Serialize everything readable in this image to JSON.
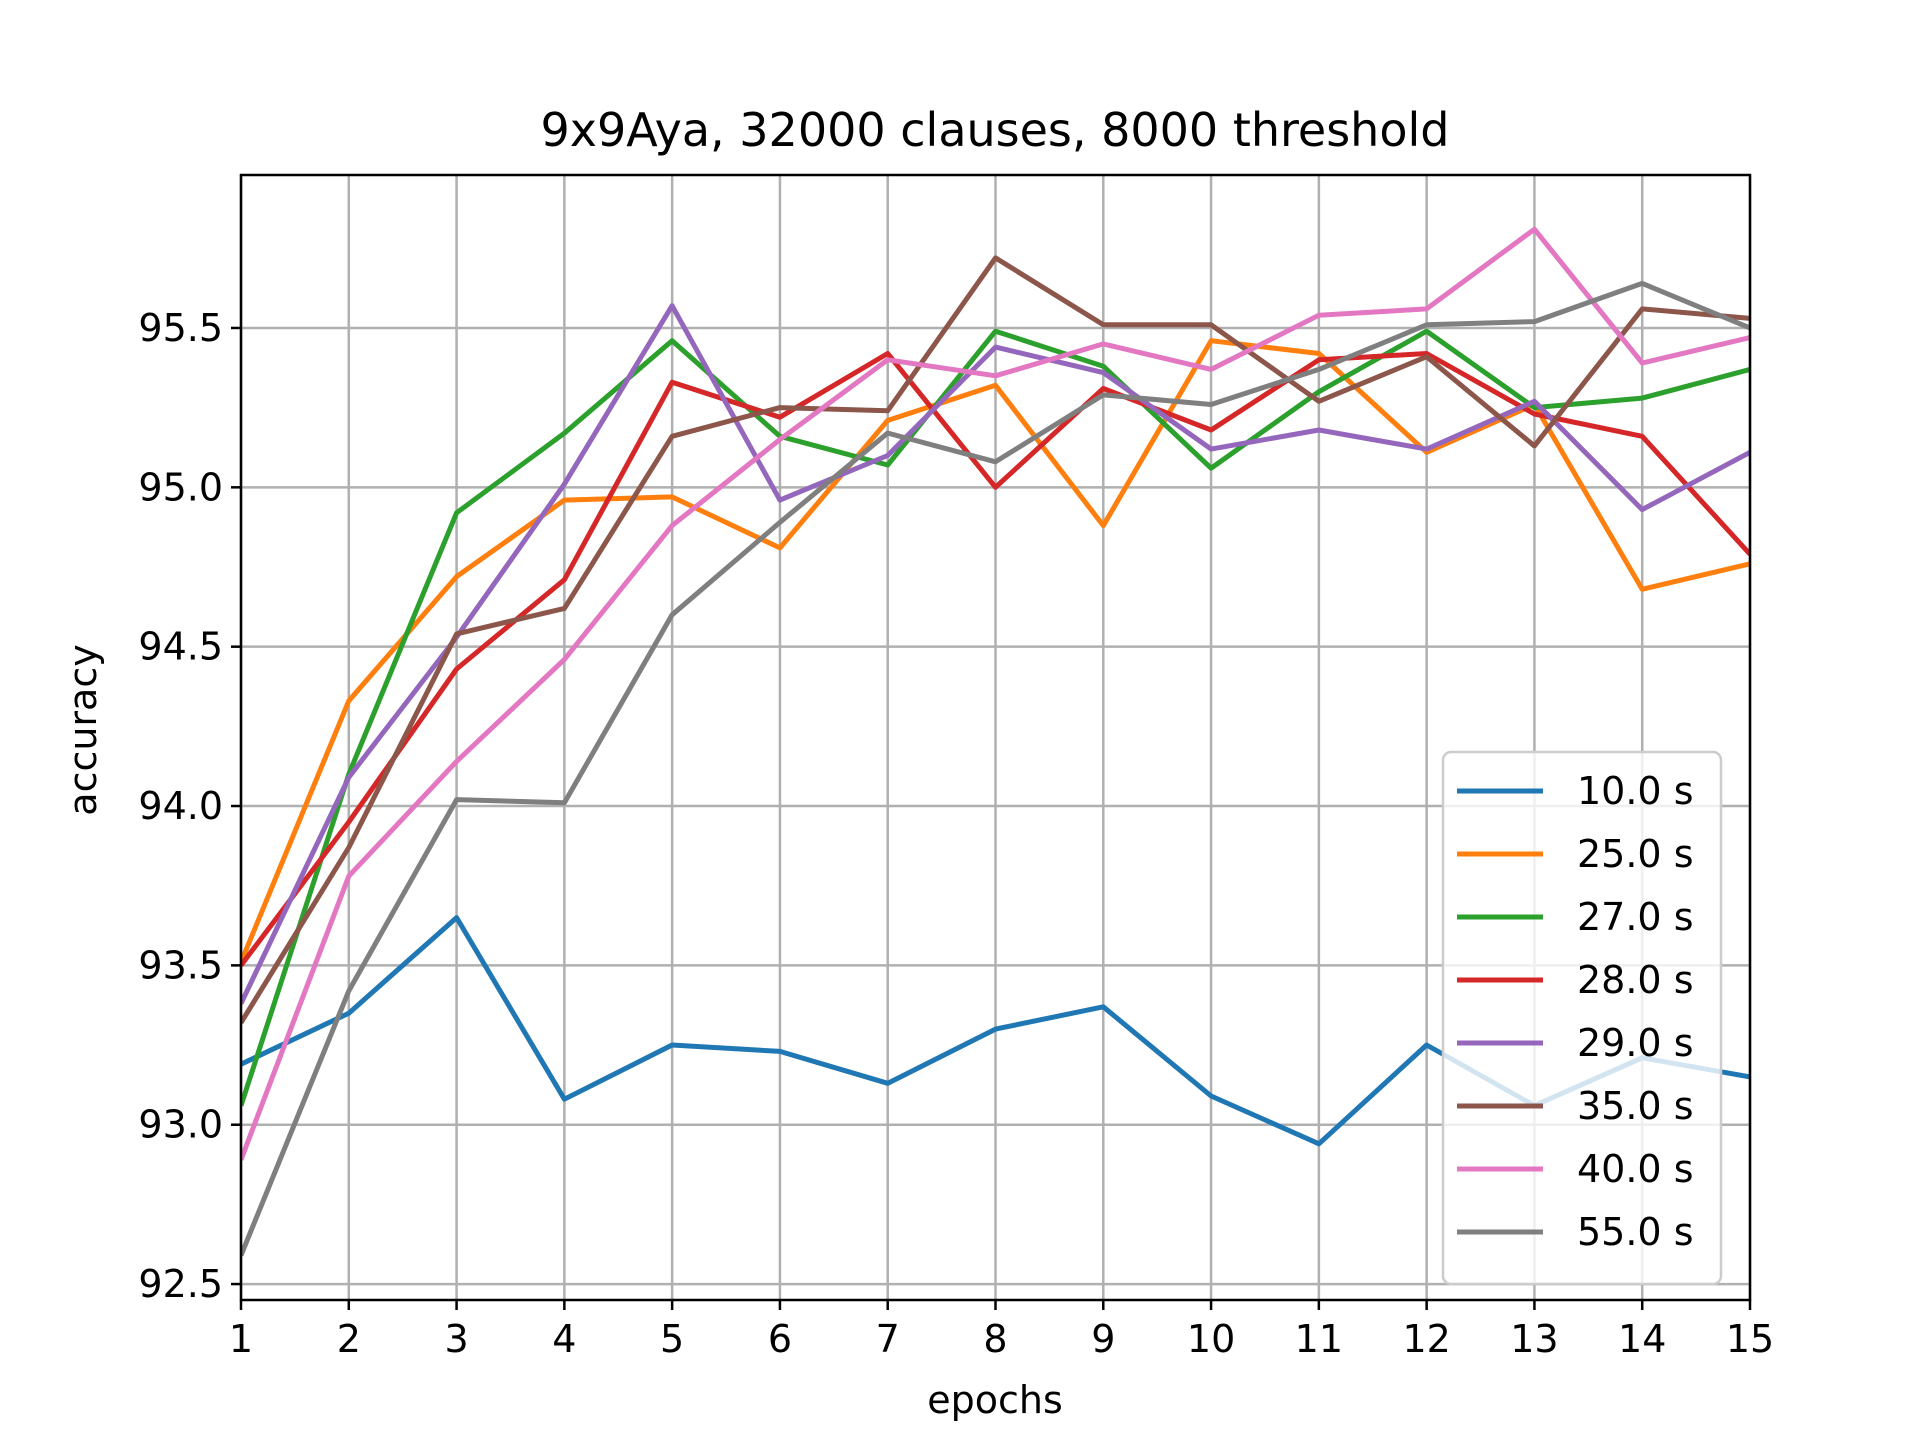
{
  "chart_data": {
    "type": "line",
    "title": "9x9Aya, 32000 clauses, 8000 threshold",
    "xlabel": "epochs",
    "ylabel": "accuracy",
    "xlim": [
      1,
      15
    ],
    "ylim": [
      92.45,
      95.98
    ],
    "x": [
      1,
      2,
      3,
      4,
      5,
      6,
      7,
      8,
      9,
      10,
      11,
      12,
      13,
      14,
      15
    ],
    "x_ticks": [
      "1",
      "2",
      "3",
      "4",
      "5",
      "6",
      "7",
      "8",
      "9",
      "10",
      "11",
      "12",
      "13",
      "14",
      "15"
    ],
    "y_ticks": [
      "92.5",
      "93.0",
      "93.5",
      "94.0",
      "94.5",
      "95.0",
      "95.5"
    ],
    "y_tick_values": [
      92.5,
      93.0,
      93.5,
      94.0,
      94.5,
      95.0,
      95.5
    ],
    "grid": true,
    "legend_position": "lower right",
    "series": [
      {
        "name": "10.0 s",
        "color": "#1f77b4",
        "values": [
          93.19,
          93.35,
          93.65,
          93.08,
          93.25,
          93.23,
          93.13,
          93.3,
          93.37,
          93.09,
          92.94,
          93.25,
          93.06,
          93.21,
          93.15
        ]
      },
      {
        "name": "25.0 s",
        "color": "#ff7f0e",
        "values": [
          93.51,
          94.33,
          94.72,
          94.96,
          94.97,
          94.81,
          95.21,
          95.32,
          94.88,
          95.46,
          95.42,
          95.11,
          95.26,
          94.68,
          94.76
        ]
      },
      {
        "name": "27.0 s",
        "color": "#2ca02c",
        "values": [
          93.06,
          94.1,
          94.92,
          95.17,
          95.46,
          95.16,
          95.07,
          95.49,
          95.38,
          95.06,
          95.3,
          95.49,
          95.25,
          95.28,
          95.37
        ]
      },
      {
        "name": "28.0 s",
        "color": "#d62728",
        "values": [
          93.5,
          93.95,
          94.43,
          94.71,
          95.33,
          95.22,
          95.42,
          95.0,
          95.31,
          95.18,
          95.4,
          95.42,
          95.23,
          95.16,
          94.79
        ]
      },
      {
        "name": "29.0 s",
        "color": "#9467bd",
        "values": [
          93.38,
          94.09,
          94.53,
          95.01,
          95.57,
          94.96,
          95.1,
          95.44,
          95.36,
          95.12,
          95.18,
          95.12,
          95.27,
          94.93,
          95.11
        ]
      },
      {
        "name": "35.0 s",
        "color": "#8c564b",
        "values": [
          93.32,
          93.87,
          94.54,
          94.62,
          95.16,
          95.25,
          95.24,
          95.72,
          95.51,
          95.51,
          95.27,
          95.41,
          95.13,
          95.56,
          95.53
        ]
      },
      {
        "name": "40.0 s",
        "color": "#e377c2",
        "values": [
          92.89,
          93.78,
          94.14,
          94.46,
          94.88,
          95.15,
          95.4,
          95.35,
          95.45,
          95.37,
          95.54,
          95.56,
          95.81,
          95.39,
          95.47
        ]
      },
      {
        "name": "55.0 s",
        "color": "#7f7f7f",
        "values": [
          92.59,
          93.42,
          94.02,
          94.01,
          94.6,
          94.89,
          95.17,
          95.08,
          95.29,
          95.26,
          95.37,
          95.51,
          95.52,
          95.64,
          95.5
        ]
      }
    ]
  }
}
